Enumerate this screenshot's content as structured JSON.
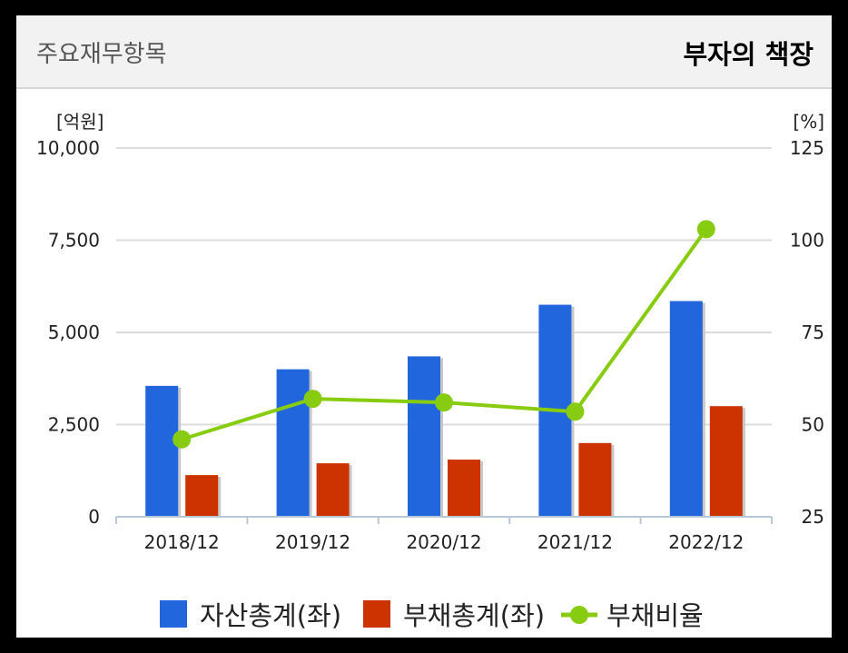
{
  "header": {
    "title": "주요재무항목",
    "subtitle": "부자의 책장"
  },
  "chart_data": {
    "type": "bar",
    "categories": [
      "2018/12",
      "2019/12",
      "2020/12",
      "2021/12",
      "2022/12"
    ],
    "series": [
      {
        "name": "자산총계(좌)",
        "type": "bar",
        "axis": "left",
        "color": "#2266dd",
        "values": [
          3550,
          4000,
          4350,
          5750,
          5850
        ]
      },
      {
        "name": "부채총계(좌)",
        "type": "bar",
        "axis": "left",
        "color": "#cc3300",
        "values": [
          1130,
          1450,
          1550,
          2000,
          3000
        ]
      },
      {
        "name": "부채비율",
        "type": "line",
        "axis": "right",
        "color": "#88cc11",
        "values": [
          46,
          57,
          56,
          53.5,
          103
        ]
      }
    ],
    "y_left": {
      "unit": "[억원]",
      "min": 0,
      "max": 10000,
      "ticks": [
        "0",
        "2,500",
        "5,000",
        "7,500",
        "10,000"
      ]
    },
    "y_right": {
      "unit": "[%]",
      "min": 25,
      "max": 125,
      "ticks": [
        "25",
        "50",
        "75",
        "100",
        "125"
      ]
    },
    "legend": [
      "자산총계(좌)",
      "부채총계(좌)",
      "부채비율"
    ]
  }
}
